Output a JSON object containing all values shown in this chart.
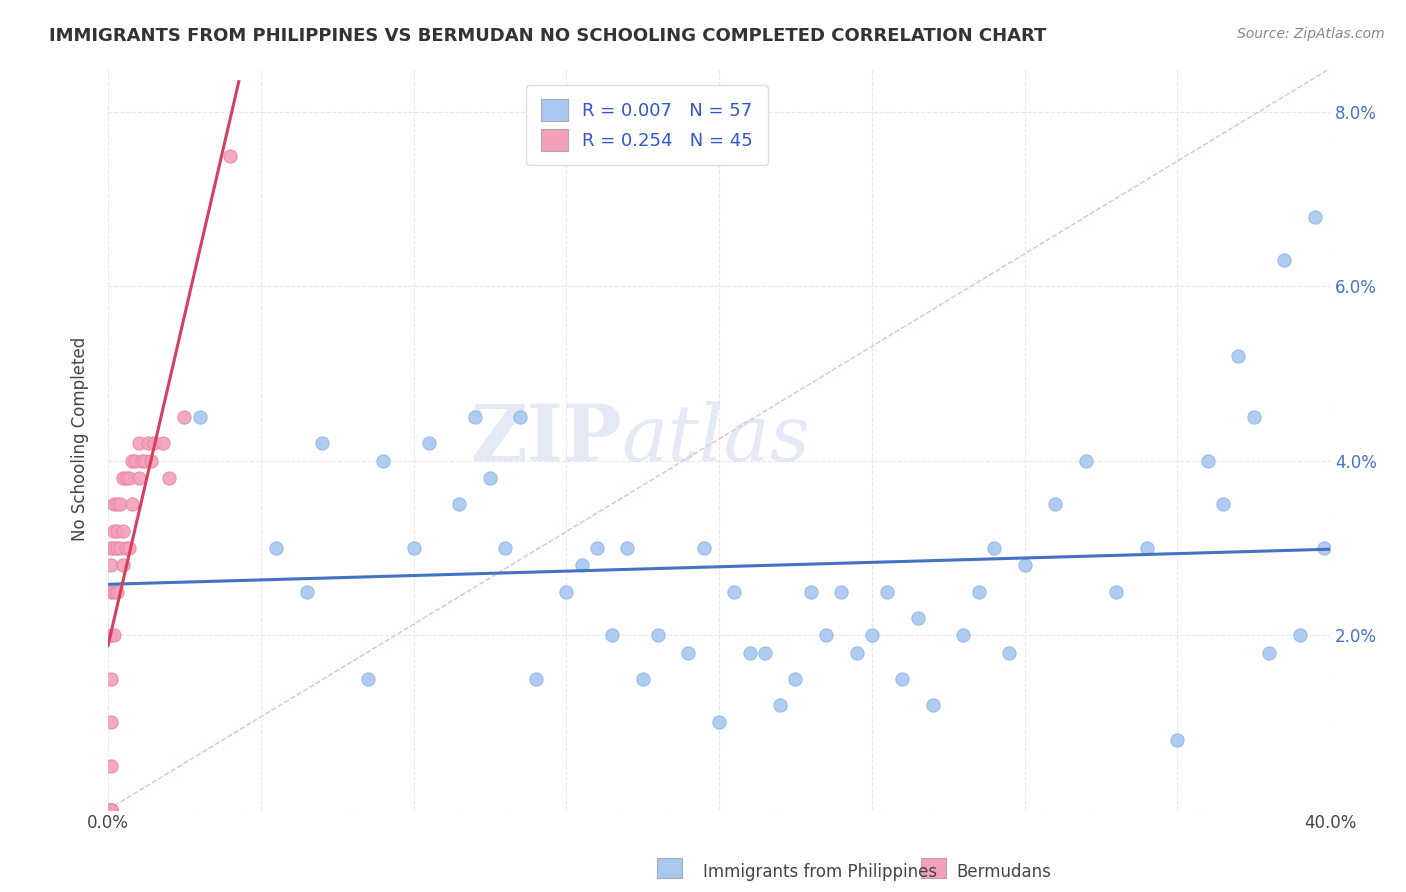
{
  "title": "IMMIGRANTS FROM PHILIPPINES VS BERMUDAN NO SCHOOLING COMPLETED CORRELATION CHART",
  "source": "Source: ZipAtlas.com",
  "ylabel_label": "No Schooling Completed",
  "xlim": [
    0.0,
    0.4
  ],
  "ylim": [
    0.0,
    0.085
  ],
  "xticks": [
    0.0,
    0.05,
    0.1,
    0.15,
    0.2,
    0.25,
    0.3,
    0.35,
    0.4
  ],
  "yticks": [
    0.0,
    0.02,
    0.04,
    0.06,
    0.08
  ],
  "philippines_R": "0.007",
  "philippines_N": "57",
  "bermuda_R": "0.254",
  "bermuda_N": "45",
  "philippines_color": "#a8c8f0",
  "bermuda_color": "#f4a0b8",
  "trendline_color_philippines": "#4472c4",
  "trendline_color_bermuda": "#d44060",
  "background_color": "#ffffff",
  "grid_color": "#e8e8e8",
  "legend_text_color": "#3355cc",
  "philippines_x": [
    0.03,
    0.055,
    0.065,
    0.07,
    0.085,
    0.09,
    0.1,
    0.105,
    0.115,
    0.12,
    0.125,
    0.13,
    0.135,
    0.14,
    0.15,
    0.155,
    0.16,
    0.165,
    0.17,
    0.175,
    0.18,
    0.19,
    0.195,
    0.2,
    0.205,
    0.21,
    0.215,
    0.22,
    0.225,
    0.23,
    0.235,
    0.24,
    0.245,
    0.25,
    0.255,
    0.26,
    0.265,
    0.27,
    0.28,
    0.285,
    0.29,
    0.295,
    0.3,
    0.31,
    0.32,
    0.33,
    0.34,
    0.35,
    0.36,
    0.365,
    0.37,
    0.375,
    0.38,
    0.385,
    0.39,
    0.395,
    0.398
  ],
  "philippines_y": [
    0.045,
    0.03,
    0.025,
    0.042,
    0.015,
    0.04,
    0.03,
    0.042,
    0.035,
    0.045,
    0.038,
    0.03,
    0.045,
    0.015,
    0.025,
    0.028,
    0.03,
    0.02,
    0.03,
    0.015,
    0.02,
    0.018,
    0.03,
    0.01,
    0.025,
    0.018,
    0.018,
    0.012,
    0.015,
    0.025,
    0.02,
    0.025,
    0.018,
    0.02,
    0.025,
    0.015,
    0.022,
    0.012,
    0.02,
    0.025,
    0.03,
    0.018,
    0.028,
    0.035,
    0.04,
    0.025,
    0.03,
    0.008,
    0.04,
    0.035,
    0.052,
    0.045,
    0.018,
    0.063,
    0.02,
    0.068,
    0.03
  ],
  "bermuda_x": [
    0.001,
    0.001,
    0.001,
    0.001,
    0.001,
    0.001,
    0.001,
    0.001,
    0.001,
    0.001,
    0.001,
    0.001,
    0.001,
    0.002,
    0.002,
    0.002,
    0.002,
    0.002,
    0.003,
    0.003,
    0.003,
    0.003,
    0.004,
    0.004,
    0.005,
    0.005,
    0.005,
    0.006,
    0.006,
    0.007,
    0.007,
    0.008,
    0.008,
    0.009,
    0.01,
    0.01,
    0.011,
    0.012,
    0.013,
    0.014,
    0.015,
    0.018,
    0.02,
    0.025,
    0.04
  ],
  "bermuda_y": [
    0.0,
    0.0,
    0.0,
    0.0,
    0.0,
    0.0,
    0.005,
    0.01,
    0.015,
    0.02,
    0.025,
    0.028,
    0.03,
    0.02,
    0.025,
    0.03,
    0.032,
    0.035,
    0.025,
    0.03,
    0.032,
    0.035,
    0.03,
    0.035,
    0.028,
    0.032,
    0.038,
    0.03,
    0.038,
    0.03,
    0.038,
    0.035,
    0.04,
    0.04,
    0.038,
    0.042,
    0.04,
    0.04,
    0.042,
    0.04,
    0.042,
    0.042,
    0.038,
    0.045,
    0.075
  ]
}
